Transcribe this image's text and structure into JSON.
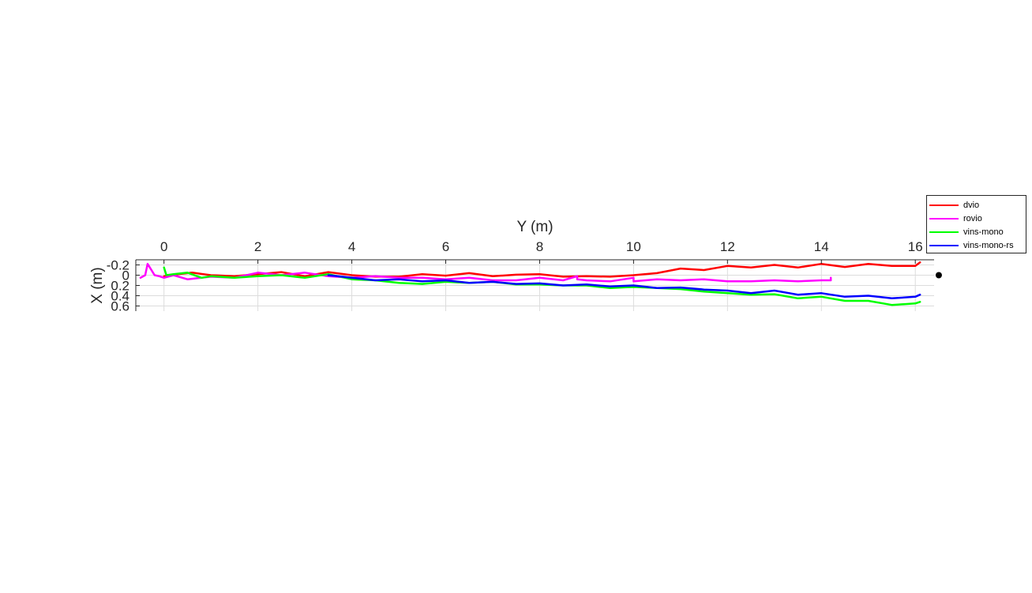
{
  "chart_data": {
    "type": "line",
    "title": "",
    "xlabel": "Y (m)",
    "ylabel": "X (m)",
    "xlim": [
      -0.6,
      16.4
    ],
    "ylim": [
      -0.3,
      0.7
    ],
    "y_reversed": true,
    "x_axis_location": "top",
    "x_ticks": [
      0,
      2,
      4,
      6,
      8,
      10,
      12,
      14,
      16
    ],
    "x_tick_labels": [
      "0",
      "2",
      "4",
      "6",
      "8",
      "10",
      "12",
      "14",
      "16"
    ],
    "y_ticks": [
      -0.2,
      0,
      0.2,
      0.4,
      0.6
    ],
    "y_tick_labels": [
      "-0.2",
      "0",
      "0.2",
      "0.4",
      "0.6"
    ],
    "grid": true,
    "legend_position": "outside-right",
    "extra_markers": [
      {
        "name": "end-point",
        "x": 16.5,
        "y": 0.0,
        "color": "#000000"
      }
    ],
    "series": [
      {
        "name": "dvio",
        "color": "#ff0000",
        "x": [
          0.0,
          0.3,
          0.6,
          1.0,
          1.5,
          2.0,
          2.5,
          3.0,
          3.5,
          4.0,
          4.5,
          5.0,
          5.5,
          6.0,
          6.5,
          7.0,
          7.5,
          8.0,
          8.5,
          9.0,
          9.5,
          10.0,
          10.5,
          11.0,
          11.5,
          12.0,
          12.5,
          13.0,
          13.5,
          14.0,
          14.5,
          15.0,
          15.5,
          16.0,
          16.1
        ],
        "y": [
          0.02,
          -0.02,
          -0.05,
          0.0,
          0.02,
          -0.02,
          -0.06,
          0.02,
          -0.06,
          0.0,
          0.03,
          0.03,
          -0.02,
          0.01,
          -0.04,
          0.02,
          -0.01,
          -0.02,
          0.03,
          0.02,
          0.03,
          0.0,
          -0.04,
          -0.13,
          -0.1,
          -0.18,
          -0.15,
          -0.2,
          -0.15,
          -0.22,
          -0.16,
          -0.22,
          -0.18,
          -0.18,
          -0.25
        ]
      },
      {
        "name": "rovio",
        "color": "#ff00ff",
        "x": [
          -0.5,
          -0.4,
          -0.35,
          -0.3,
          -0.2,
          -0.1,
          0.0,
          0.2,
          0.5,
          1.0,
          1.5,
          2.0,
          2.5,
          3.0,
          3.5,
          4.0,
          4.5,
          5.0,
          5.5,
          6.0,
          6.5,
          7.0,
          7.5,
          8.0,
          8.5,
          8.8,
          8.8,
          9.0,
          9.5,
          10.0,
          10.0,
          10.5,
          11.0,
          11.5,
          12.0,
          12.5,
          13.0,
          13.5,
          14.0,
          14.2,
          14.2
        ],
        "y": [
          0.05,
          0.0,
          -0.22,
          -0.15,
          0.0,
          0.02,
          0.05,
          0.0,
          0.08,
          0.03,
          0.05,
          -0.05,
          0.0,
          -0.05,
          0.02,
          0.05,
          0.02,
          0.05,
          0.05,
          0.08,
          0.05,
          0.1,
          0.1,
          0.05,
          0.1,
          0.02,
          0.08,
          0.1,
          0.12,
          0.05,
          0.12,
          0.08,
          0.1,
          0.08,
          0.12,
          0.12,
          0.1,
          0.12,
          0.1,
          0.1,
          0.05
        ]
      },
      {
        "name": "vins-mono",
        "color": "#00ff00",
        "x": [
          0.0,
          0.05,
          0.2,
          0.5,
          0.8,
          1.0,
          1.5,
          2.0,
          2.5,
          3.0,
          3.5,
          4.0,
          4.5,
          5.0,
          5.5,
          6.0,
          6.5,
          7.0,
          7.5,
          8.0,
          8.5,
          9.0,
          9.5,
          10.0,
          10.5,
          11.0,
          11.5,
          12.0,
          12.5,
          13.0,
          13.5,
          14.0,
          14.5,
          15.0,
          15.5,
          16.0,
          16.1
        ],
        "y": [
          -0.15,
          0.0,
          -0.02,
          -0.05,
          0.05,
          0.02,
          0.05,
          0.02,
          0.0,
          0.05,
          -0.02,
          0.08,
          0.1,
          0.15,
          0.17,
          0.13,
          0.15,
          0.13,
          0.18,
          0.18,
          0.2,
          0.2,
          0.25,
          0.23,
          0.25,
          0.27,
          0.32,
          0.35,
          0.38,
          0.37,
          0.45,
          0.42,
          0.5,
          0.5,
          0.58,
          0.55,
          0.52
        ]
      },
      {
        "name": "vins-mono-rs",
        "color": "#0000ff",
        "x": [
          3.5,
          4.0,
          4.5,
          5.0,
          5.5,
          6.0,
          6.5,
          7.0,
          7.5,
          8.0,
          8.5,
          9.0,
          9.5,
          10.0,
          10.5,
          11.0,
          11.5,
          12.0,
          12.5,
          13.0,
          13.5,
          14.0,
          14.5,
          15.0,
          15.5,
          16.0,
          16.1
        ],
        "y": [
          0.0,
          0.05,
          0.1,
          0.08,
          0.12,
          0.1,
          0.15,
          0.13,
          0.17,
          0.16,
          0.2,
          0.18,
          0.22,
          0.2,
          0.25,
          0.24,
          0.28,
          0.3,
          0.35,
          0.3,
          0.38,
          0.35,
          0.42,
          0.4,
          0.45,
          0.42,
          0.38
        ]
      }
    ]
  }
}
